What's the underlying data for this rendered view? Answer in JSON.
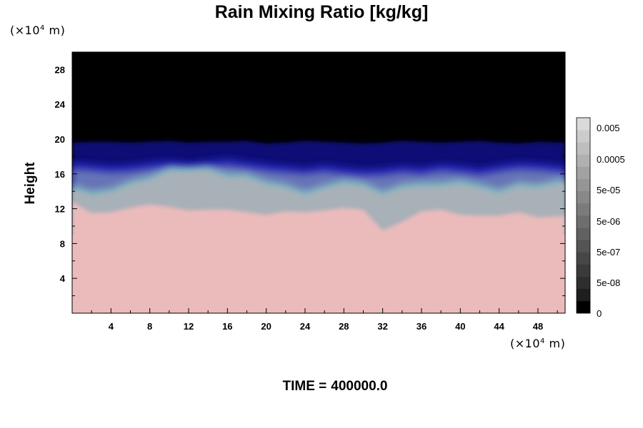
{
  "chart_data": {
    "type": "heatmap",
    "title": "Rain Mixing Ratio [kg/kg]",
    "ylabel": "Height",
    "x_unit": {
      "prefix": "(×10",
      "exp": "4",
      "suffix": " m)"
    },
    "y_unit": {
      "prefix": "(×10",
      "exp": "4",
      "suffix": " m)"
    },
    "x_ticks": [
      "4",
      "8",
      "12",
      "16",
      "20",
      "24",
      "28",
      "32",
      "36",
      "40",
      "44",
      "48"
    ],
    "y_ticks": [
      "4",
      "8",
      "12",
      "16",
      "20",
      "24",
      "28"
    ],
    "xlim": [
      0,
      50.8
    ],
    "ylim": [
      0,
      30
    ],
    "colorbar": {
      "labels": [
        "0",
        "5e-08",
        "5e-07",
        "5e-06",
        "5e-05",
        "0.0005",
        "0.005"
      ],
      "colors": [
        "#000000",
        "#1e1e1e",
        "#2e2e2e",
        "#3a3a3a",
        "#474747",
        "#545454",
        "#616161",
        "#6e6e6e",
        "#7b7b7b",
        "#888888",
        "#959595",
        "#a2a2a2",
        "#b0b0b0",
        "#bebebe",
        "#cccccc",
        "#dadada"
      ]
    },
    "field_layers": [
      {
        "name": "upper",
        "color": "#000000"
      },
      {
        "name": "deep-blue",
        "color": "#0c0c74"
      },
      {
        "name": "blue",
        "color": "#2828b8"
      },
      {
        "name": "slate",
        "color": "#7282b8"
      },
      {
        "name": "teal",
        "color": "#88bcc0"
      },
      {
        "name": "grey",
        "color": "#a8b0b8"
      },
      {
        "name": "lower",
        "color": "#ebbbbb"
      }
    ],
    "boundary_heights": {
      "x": [
        0,
        2,
        4,
        6,
        8,
        10,
        12,
        14,
        16,
        18,
        20,
        22,
        24,
        26,
        28,
        30,
        32,
        34,
        36,
        38,
        40,
        42,
        44,
        46,
        48,
        50.8
      ],
      "top": [
        19.6,
        19.7,
        19.7,
        19.6,
        19.7,
        19.8,
        19.6,
        19.7,
        19.7,
        19.8,
        19.5,
        19.6,
        19.8,
        19.7,
        19.6,
        19.5,
        19.6,
        19.8,
        19.7,
        19.6,
        19.7,
        19.8,
        19.6,
        19.5,
        19.7,
        19.6
      ],
      "mid": [
        16.6,
        16.4,
        16.2,
        16.3,
        16.6,
        16.8,
        16.5,
        16.8,
        17.0,
        16.7,
        16.4,
        16.2,
        16.0,
        16.3,
        16.0,
        15.8,
        15.9,
        16.2,
        16.0,
        16.4,
        16.2,
        15.9,
        16.3,
        16.6,
        16.5,
        16.2
      ],
      "grey_top": [
        14.2,
        13.5,
        13.8,
        14.7,
        15.2,
        16.2,
        16.2,
        16.3,
        15.5,
        15.5,
        14.7,
        14.3,
        13.5,
        14.2,
        14.8,
        14.5,
        13.5,
        14.3,
        14.5,
        14.5,
        14.8,
        14.3,
        13.7,
        14.5,
        14.3,
        15.0
      ],
      "pink_top": [
        12.8,
        11.5,
        11.6,
        12.1,
        12.5,
        12.2,
        11.8,
        11.9,
        11.9,
        11.6,
        11.3,
        11.7,
        11.6,
        11.8,
        12.1,
        11.9,
        9.5,
        10.5,
        11.7,
        11.9,
        11.3,
        11.2,
        11.2,
        11.6,
        11.0,
        11.2
      ]
    }
  },
  "time": {
    "label": "TIME =",
    "value": "400000.0"
  }
}
